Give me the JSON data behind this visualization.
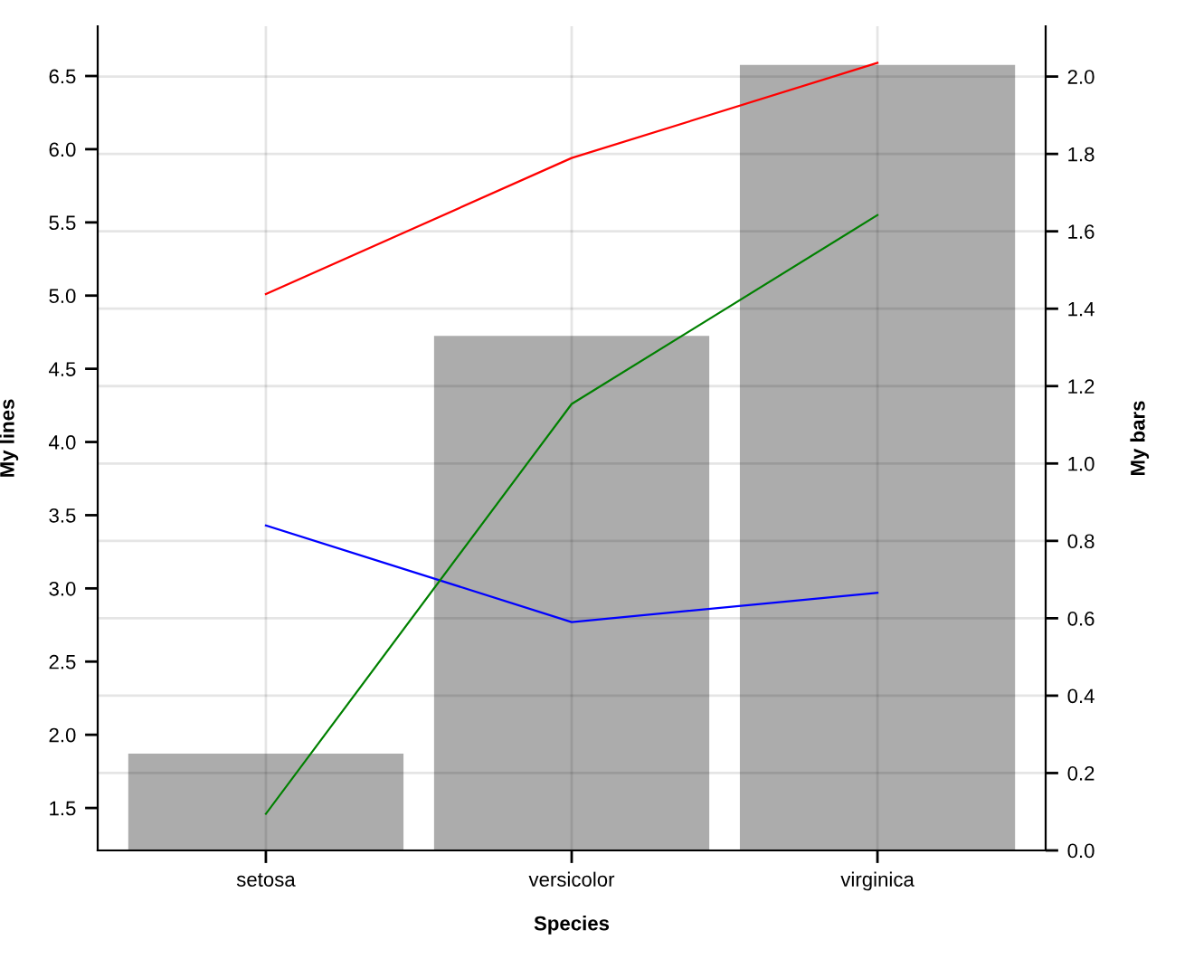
{
  "chart_data": {
    "type": "bar",
    "categories": [
      "setosa",
      "versicolor",
      "virginica"
    ],
    "xlabel": "Species",
    "ylabel": "My lines",
    "y2label": "My bars",
    "series": [
      {
        "axis": "y2",
        "color": "#acacac",
        "values": [
          0.25,
          1.33,
          2.03
        ]
      },
      {
        "type": "line",
        "color": "#ff0000",
        "values": [
          5.01,
          5.94,
          6.59
        ]
      },
      {
        "type": "line",
        "color": "#0000ff",
        "values": [
          3.43,
          2.77,
          2.97
        ]
      },
      {
        "type": "line",
        "color": "#008000",
        "values": [
          1.46,
          4.26,
          5.55
        ]
      }
    ],
    "ylim": [
      1.21,
      6.84
    ],
    "yticks": [
      1.5,
      {
        "value": 2,
        "label": "2.0"
      },
      2.5,
      {
        "value": 3,
        "label": "3.0"
      },
      3.5,
      {
        "value": 4,
        "label": "4.0"
      },
      4.5,
      {
        "value": 5,
        "label": "5.0"
      },
      5.5,
      {
        "value": 6,
        "label": "6.0"
      },
      6.5
    ],
    "y2lim": [
      0,
      2.13
    ],
    "y2ticks": [
      {
        "value": 0,
        "label": "0.0"
      },
      0.2,
      0.4,
      0.6,
      0.8,
      {
        "value": 1,
        "label": "1.0"
      },
      1.2,
      1.4,
      1.6,
      1.8,
      {
        "value": 2,
        "label": "2.0"
      }
    ],
    "grid": true
  }
}
